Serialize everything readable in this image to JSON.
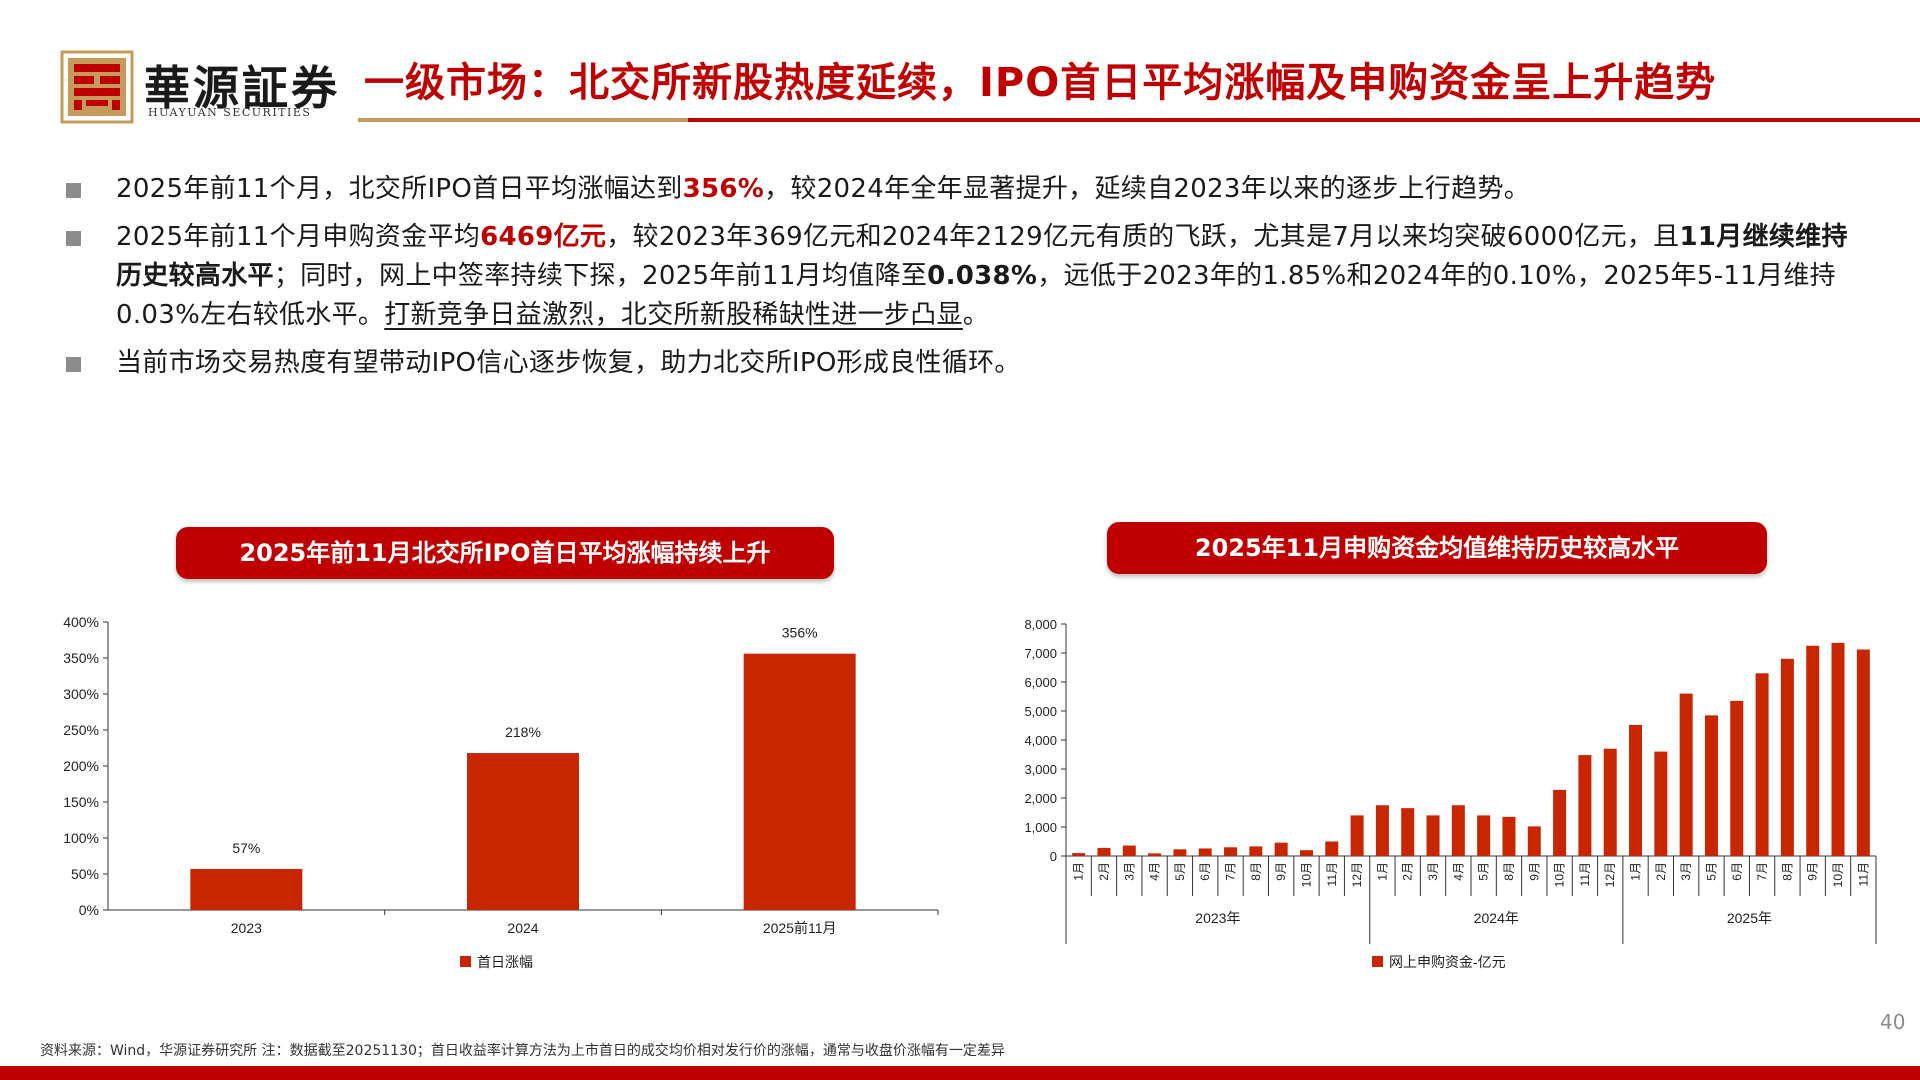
{
  "header": {
    "logo_cn": "華源証券",
    "logo_en": "HUAYUAN SECURITIES",
    "title": "一级市场：北交所新股热度延续，IPO首日平均涨幅及申购资金呈上升趋势"
  },
  "bullets": [
    {
      "parts": [
        {
          "text": "2025年前11个月，北交所IPO首日平均涨幅达到",
          "style": ""
        },
        {
          "text": "356%",
          "style": "red"
        },
        {
          "text": "，较2024年全年显著提升，延续自2023年以来的逐步上行趋势。",
          "style": ""
        }
      ]
    },
    {
      "parts": [
        {
          "text": "2025年前11个月申购资金平均",
          "style": ""
        },
        {
          "text": "6469亿元",
          "style": "red"
        },
        {
          "text": "，较2023年369亿元和2024年2129亿元有质的飞跃，尤其是7月以来均突破6000亿元，且",
          "style": ""
        },
        {
          "text": "11月继续维持历史较高水平",
          "style": "bold"
        },
        {
          "text": "；同时，网上中签率持续下探，2025年前11月均值降至",
          "style": ""
        },
        {
          "text": "0.038%",
          "style": "bold"
        },
        {
          "text": "，远低于2023年的1.85%和2024年的0.10%，2025年5-11月维持0.03%左右较低水平。",
          "style": ""
        },
        {
          "text": "打新竞争日益激烈，北交所新股稀缺性进一步凸显",
          "style": "uline"
        },
        {
          "text": "。",
          "style": ""
        }
      ]
    },
    {
      "parts": [
        {
          "text": "当前市场交易热度有望带动IPO信心逐步恢复，助力北交所IPO形成良性循环。",
          "style": ""
        }
      ]
    }
  ],
  "charts": {
    "left_banner": "2025年前11月北交所IPO首日平均涨幅持续上升",
    "right_banner": "2025年11月申购资金均值维持历史较高水平"
  },
  "chart_data": [
    {
      "type": "bar",
      "title": "2025年前11月北交所IPO首日平均涨幅持续上升",
      "categories": [
        "2023",
        "2024",
        "2025前11月"
      ],
      "series": [
        {
          "name": "首日涨幅",
          "values": [
            57,
            218,
            356
          ]
        }
      ],
      "data_labels": [
        "57%",
        "218%",
        "356%"
      ],
      "yticks": [
        "0%",
        "50%",
        "100%",
        "150%",
        "200%",
        "250%",
        "300%",
        "350%",
        "400%"
      ],
      "ylim": [
        0,
        400
      ],
      "legend": "bottom",
      "color": "#c82600"
    },
    {
      "type": "bar",
      "title": "2025年11月申购资金均值维持历史较高水平",
      "categories": [
        "1月",
        "2月",
        "3月",
        "4月",
        "5月",
        "6月",
        "7月",
        "8月",
        "9月",
        "10月",
        "11月",
        "12月",
        "1月",
        "2月",
        "3月",
        "4月",
        "5月",
        "8月",
        "9月",
        "10月",
        "11月",
        "12月",
        "1月",
        "2月",
        "3月",
        "5月",
        "6月",
        "7月",
        "8月",
        "9月",
        "10月",
        "11月"
      ],
      "groups": [
        {
          "label": "2023年",
          "count": 12
        },
        {
          "label": "2024年",
          "count": 10
        },
        {
          "label": "2025年",
          "count": 10
        }
      ],
      "series": [
        {
          "name": "网上申购资金-亿元",
          "values": [
            100,
            280,
            360,
            90,
            230,
            260,
            300,
            330,
            460,
            200,
            500,
            1400,
            1750,
            1650,
            1400,
            1750,
            1400,
            1350,
            1020,
            2280,
            3480,
            3700,
            4520,
            3600,
            5600,
            4850,
            5350,
            6300,
            6800,
            7250,
            7350,
            7120
          ]
        }
      ],
      "yticks": [
        "0",
        "1,000",
        "2,000",
        "3,000",
        "4,000",
        "5,000",
        "6,000",
        "7,000",
        "8,000"
      ],
      "ylim": [
        0,
        8000
      ],
      "legend": "bottom",
      "color": "#c82600"
    }
  ],
  "footer": {
    "source": "资料来源：Wind，华源证券研究所   注：数据截至20251130；首日收益率计算方法为上市首日的成交均价相对发行价的涨幅，通常与收盘价涨幅有一定差异",
    "page": "40"
  },
  "colors": {
    "accent_red": "#c00000",
    "gold": "#c59b5b",
    "bar": "#c82600"
  }
}
